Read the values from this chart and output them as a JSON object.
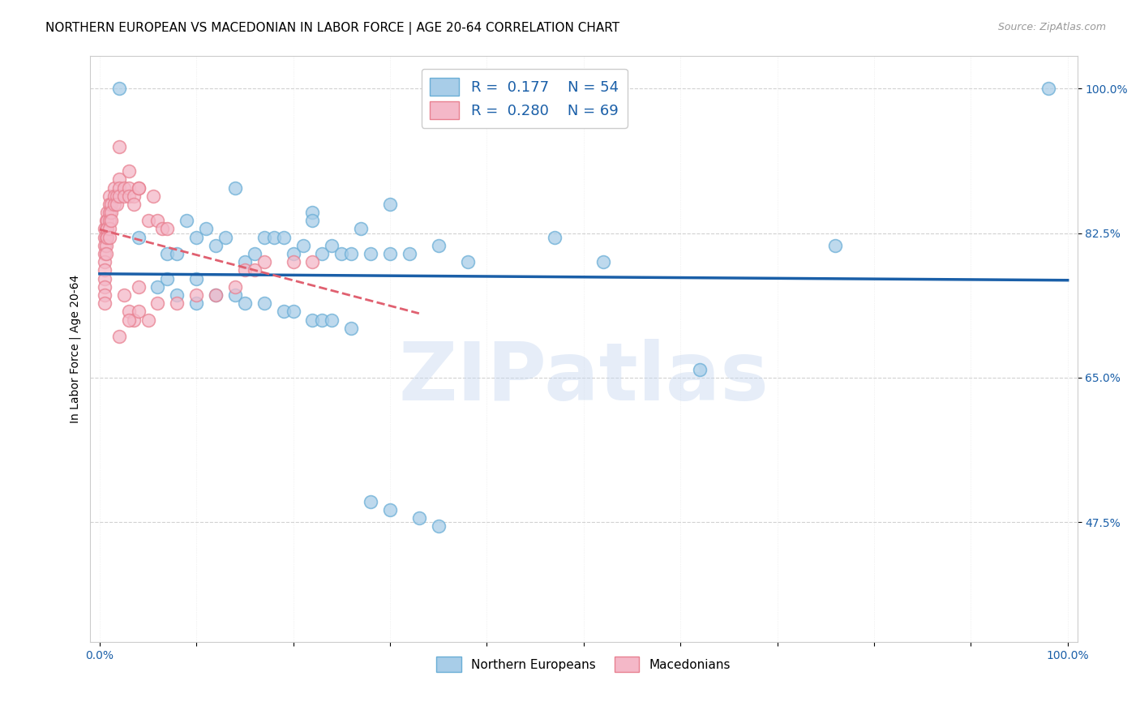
{
  "title": "NORTHERN EUROPEAN VS MACEDONIAN IN LABOR FORCE | AGE 20-64 CORRELATION CHART",
  "source": "Source: ZipAtlas.com",
  "ylabel_label": "In Labor Force | Age 20-64",
  "xlim": [
    -0.01,
    1.01
  ],
  "ylim": [
    0.33,
    1.04
  ],
  "ytick_positions": [
    0.475,
    0.65,
    0.825,
    1.0
  ],
  "ytick_labels": [
    "47.5%",
    "65.0%",
    "82.5%",
    "100.0%"
  ],
  "blue_color": "#a8cde8",
  "pink_color": "#f4b8c8",
  "blue_edge": "#6aaed6",
  "pink_edge": "#e88090",
  "trend_blue": "#1a5fa8",
  "trend_pink": "#e06070",
  "watermark_text": "ZIPatlas",
  "legend_r_blue": "0.177",
  "legend_n_blue": "54",
  "legend_r_pink": "0.280",
  "legend_n_pink": "69",
  "blue_x": [
    0.02,
    0.14,
    0.22,
    0.22,
    0.3,
    0.04,
    0.07,
    0.08,
    0.09,
    0.1,
    0.11,
    0.12,
    0.13,
    0.15,
    0.16,
    0.17,
    0.18,
    0.19,
    0.2,
    0.21,
    0.23,
    0.24,
    0.25,
    0.26,
    0.27,
    0.28,
    0.3,
    0.32,
    0.35,
    0.38,
    0.47,
    0.52,
    0.62,
    0.76,
    0.98,
    0.06,
    0.07,
    0.08,
    0.1,
    0.1,
    0.12,
    0.14,
    0.15,
    0.17,
    0.19,
    0.2,
    0.22,
    0.23,
    0.24,
    0.26,
    0.28,
    0.3,
    0.33,
    0.35
  ],
  "blue_y": [
    1.0,
    0.88,
    0.85,
    0.84,
    0.86,
    0.82,
    0.8,
    0.8,
    0.84,
    0.82,
    0.83,
    0.81,
    0.82,
    0.79,
    0.8,
    0.82,
    0.82,
    0.82,
    0.8,
    0.81,
    0.8,
    0.81,
    0.8,
    0.8,
    0.83,
    0.8,
    0.8,
    0.8,
    0.81,
    0.79,
    0.82,
    0.79,
    0.66,
    0.81,
    1.0,
    0.76,
    0.77,
    0.75,
    0.77,
    0.74,
    0.75,
    0.75,
    0.74,
    0.74,
    0.73,
    0.73,
    0.72,
    0.72,
    0.72,
    0.71,
    0.5,
    0.49,
    0.48,
    0.47
  ],
  "pink_x": [
    0.005,
    0.005,
    0.005,
    0.005,
    0.005,
    0.005,
    0.005,
    0.005,
    0.005,
    0.005,
    0.007,
    0.007,
    0.007,
    0.007,
    0.007,
    0.008,
    0.008,
    0.008,
    0.008,
    0.01,
    0.01,
    0.01,
    0.01,
    0.01,
    0.01,
    0.012,
    0.012,
    0.012,
    0.015,
    0.015,
    0.015,
    0.018,
    0.018,
    0.02,
    0.02,
    0.02,
    0.025,
    0.025,
    0.03,
    0.03,
    0.035,
    0.035,
    0.04,
    0.04,
    0.05,
    0.055,
    0.06,
    0.065,
    0.07,
    0.025,
    0.03,
    0.035,
    0.04,
    0.05,
    0.06,
    0.08,
    0.1,
    0.12,
    0.14,
    0.15,
    0.16,
    0.17,
    0.2,
    0.22,
    0.02,
    0.02,
    0.03,
    0.03,
    0.04
  ],
  "pink_y": [
    0.83,
    0.82,
    0.81,
    0.8,
    0.79,
    0.78,
    0.77,
    0.76,
    0.75,
    0.74,
    0.84,
    0.83,
    0.82,
    0.81,
    0.8,
    0.85,
    0.84,
    0.83,
    0.82,
    0.87,
    0.86,
    0.85,
    0.84,
    0.83,
    0.82,
    0.86,
    0.85,
    0.84,
    0.88,
    0.87,
    0.86,
    0.87,
    0.86,
    0.89,
    0.88,
    0.87,
    0.88,
    0.87,
    0.88,
    0.87,
    0.87,
    0.86,
    0.88,
    0.76,
    0.84,
    0.87,
    0.84,
    0.83,
    0.83,
    0.75,
    0.73,
    0.72,
    0.73,
    0.72,
    0.74,
    0.74,
    0.75,
    0.75,
    0.76,
    0.78,
    0.78,
    0.79,
    0.79,
    0.79,
    0.93,
    0.7,
    0.9,
    0.72,
    0.88
  ],
  "grid_color": "#cccccc",
  "background_color": "#ffffff",
  "title_fontsize": 11,
  "axis_label_fontsize": 10,
  "tick_fontsize": 10
}
